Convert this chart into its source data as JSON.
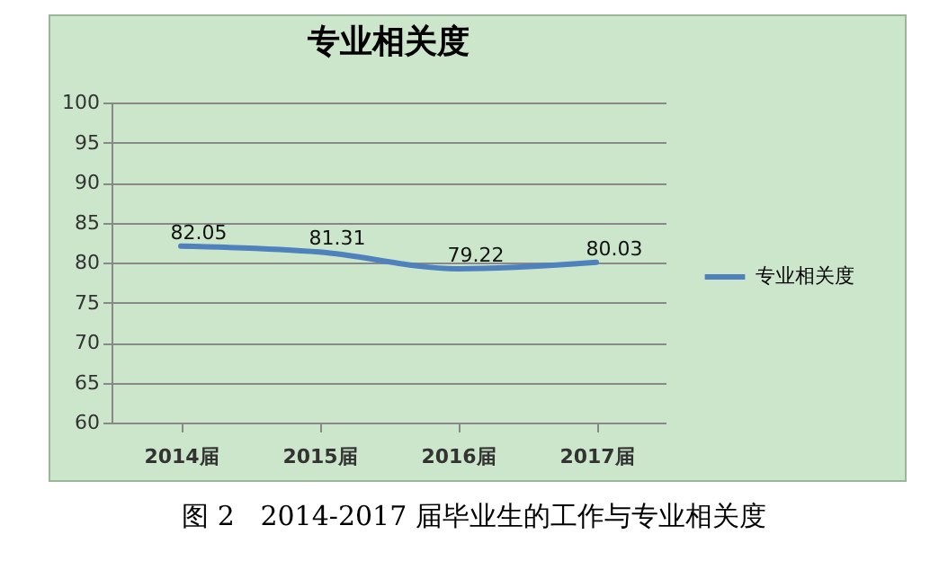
{
  "chart_data": {
    "type": "line",
    "title": "专业相关度",
    "categories": [
      "2014届",
      "2015届",
      "2016届",
      "2017届"
    ],
    "series": [
      {
        "name": "专业相关度",
        "color": "#4f81bd",
        "values": [
          82.05,
          81.31,
          79.22,
          80.03
        ]
      }
    ],
    "ylim": [
      60,
      100
    ],
    "yticks": [
      60,
      65,
      70,
      75,
      80,
      85,
      90,
      95,
      100
    ],
    "grid": "y",
    "legend": "right",
    "data_labels": true,
    "annotations": [
      "图 2   2014-2017 届毕业生的工作与专业相关度"
    ]
  }
}
